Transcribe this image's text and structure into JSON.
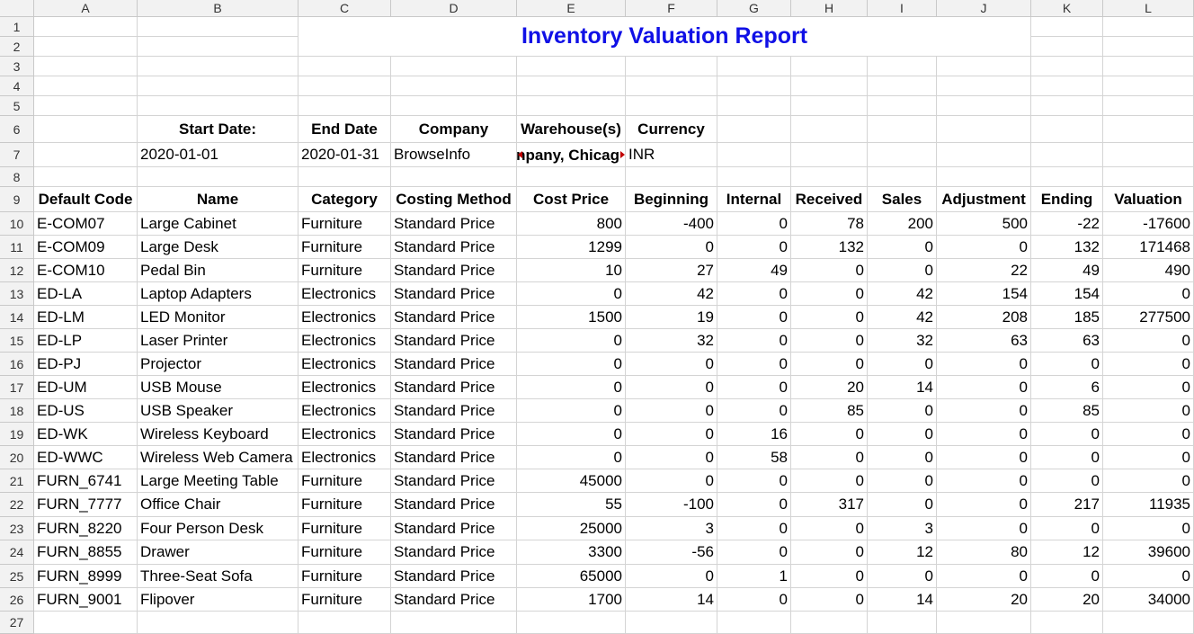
{
  "sheet": {
    "columns": [
      "A",
      "B",
      "C",
      "D",
      "E",
      "F",
      "G",
      "H",
      "I",
      "J",
      "K",
      "L"
    ],
    "rows": [
      "1",
      "2",
      "3",
      "4",
      "5",
      "6",
      "7",
      "8",
      "9",
      "10",
      "11",
      "12",
      "13",
      "14",
      "15",
      "16",
      "17",
      "18",
      "19",
      "20",
      "21",
      "22",
      "23",
      "24",
      "25",
      "26",
      "27"
    ]
  },
  "report": {
    "title": "Inventory Valuation Report",
    "params": {
      "start_label": "Start Date:",
      "start_value": "2020-01-01",
      "end_label": "End Date",
      "end_value": "2020-01-31",
      "company_label": "Company",
      "company_value": "BrowseInfo",
      "warehouse_label": "Warehouse(s)",
      "warehouse_value": "npany, Chicag",
      "currency_label": "Currency",
      "currency_value": "INR"
    },
    "headers": [
      "Default Code",
      "Name",
      "Category",
      "Costing Method",
      "Cost Price",
      "Beginning",
      "Internal",
      "Received",
      "Sales",
      "Adjustment",
      "Ending",
      "Valuation"
    ],
    "rows": [
      [
        "E-COM07",
        "Large Cabinet",
        "Furniture",
        "Standard Price",
        "800",
        "-400",
        "0",
        "78",
        "200",
        "500",
        "-22",
        "-17600"
      ],
      [
        "E-COM09",
        "Large Desk",
        "Furniture",
        "Standard Price",
        "1299",
        "0",
        "0",
        "132",
        "0",
        "0",
        "132",
        "171468"
      ],
      [
        "E-COM10",
        "Pedal Bin",
        "Furniture",
        "Standard Price",
        "10",
        "27",
        "49",
        "0",
        "0",
        "22",
        "49",
        "490"
      ],
      [
        "ED-LA",
        "Laptop Adapters",
        "Electronics",
        "Standard Price",
        "0",
        "42",
        "0",
        "0",
        "42",
        "154",
        "154",
        "0"
      ],
      [
        "ED-LM",
        "LED Monitor",
        "Electronics",
        "Standard Price",
        "1500",
        "19",
        "0",
        "0",
        "42",
        "208",
        "185",
        "277500"
      ],
      [
        "ED-LP",
        "Laser Printer",
        "Electronics",
        "Standard Price",
        "0",
        "32",
        "0",
        "0",
        "32",
        "63",
        "63",
        "0"
      ],
      [
        "ED-PJ",
        "Projector",
        "Electronics",
        "Standard Price",
        "0",
        "0",
        "0",
        "0",
        "0",
        "0",
        "0",
        "0"
      ],
      [
        "ED-UM",
        "USB Mouse",
        "Electronics",
        "Standard Price",
        "0",
        "0",
        "0",
        "20",
        "14",
        "0",
        "6",
        "0"
      ],
      [
        "ED-US",
        "USB Speaker",
        "Electronics",
        "Standard Price",
        "0",
        "0",
        "0",
        "85",
        "0",
        "0",
        "85",
        "0"
      ],
      [
        "ED-WK",
        "Wireless Keyboard",
        "Electronics",
        "Standard Price",
        "0",
        "0",
        "16",
        "0",
        "0",
        "0",
        "0",
        "0"
      ],
      [
        "ED-WWC",
        "Wireless Web Camera",
        "Electronics",
        "Standard Price",
        "0",
        "0",
        "58",
        "0",
        "0",
        "0",
        "0",
        "0"
      ],
      [
        "FURN_6741",
        "Large Meeting Table",
        "Furniture",
        "Standard Price",
        "45000",
        "0",
        "0",
        "0",
        "0",
        "0",
        "0",
        "0"
      ],
      [
        "FURN_7777",
        "Office Chair",
        "Furniture",
        "Standard Price",
        "55",
        "-100",
        "0",
        "317",
        "0",
        "0",
        "217",
        "11935"
      ],
      [
        "FURN_8220",
        "Four Person Desk",
        "Furniture",
        "Standard Price",
        "25000",
        "3",
        "0",
        "0",
        "3",
        "0",
        "0",
        "0"
      ],
      [
        "FURN_8855",
        "Drawer",
        "Furniture",
        "Standard Price",
        "3300",
        "-56",
        "0",
        "0",
        "12",
        "80",
        "12",
        "39600"
      ],
      [
        "FURN_8999",
        "Three-Seat Sofa",
        "Furniture",
        "Standard Price",
        "65000",
        "0",
        "1",
        "0",
        "0",
        "0",
        "0",
        "0"
      ],
      [
        "FURN_9001",
        "Flipover",
        "Furniture",
        "Standard Price",
        "1700",
        "14",
        "0",
        "0",
        "14",
        "20",
        "20",
        "34000"
      ]
    ]
  }
}
